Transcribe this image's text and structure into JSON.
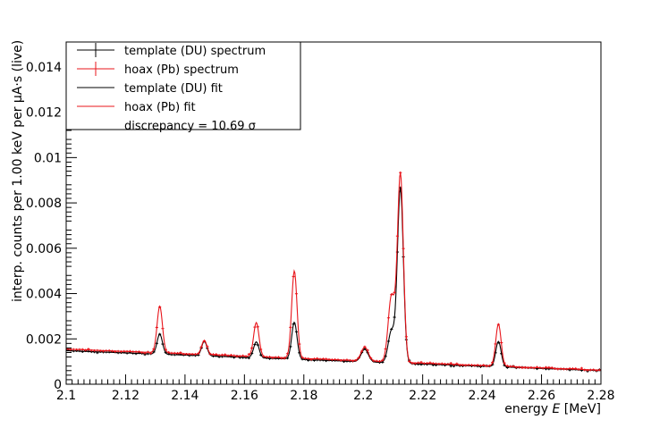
{
  "chart_data": {
    "type": "scatter",
    "xlabel_prefix": "energy",
    "xlabel_var": "E",
    "xlabel_unit": "[MeV]",
    "ylabel": "interp. counts per 1.00 keV per μA·s (live)",
    "xlim": [
      2.1,
      2.28
    ],
    "ylim": [
      0,
      0.0151
    ],
    "xticks": [
      "2.1",
      "2.12",
      "2.14",
      "2.16",
      "2.18",
      "2.2",
      "2.22",
      "2.24",
      "2.26",
      "2.28"
    ],
    "yticks": [
      "0",
      "0.002",
      "0.004",
      "0.006",
      "0.008",
      "0.01",
      "0.012",
      "0.014"
    ],
    "grid": false,
    "legend_position": "top-left",
    "legend": [
      {
        "label": "template (DU) spectrum",
        "kind": "marker",
        "color": "#000000"
      },
      {
        "label": "hoax (Pb) spectrum",
        "kind": "marker",
        "color": "#e8151b"
      },
      {
        "label": "template (DU) fit",
        "kind": "line",
        "color": "#000000"
      },
      {
        "label": "hoax (Pb) fit",
        "kind": "line",
        "color": "#e8151b"
      },
      {
        "label": "discrepancy = 10.69 σ",
        "kind": "none",
        "color": "#000000"
      }
    ],
    "series": [
      {
        "name": "template (DU)",
        "color": "#000000",
        "baseline": {
          "start": 0.00148,
          "end": 0.0006
        },
        "peaks": [
          {
            "x": 2.1315,
            "height": 0.00088,
            "sigma": 0.0009
          },
          {
            "x": 2.1465,
            "height": 0.00064,
            "sigma": 0.0009
          },
          {
            "x": 2.164,
            "height": 0.0007,
            "sigma": 0.0009
          },
          {
            "x": 2.1768,
            "height": 0.00163,
            "sigma": 0.0009
          },
          {
            "x": 2.2005,
            "height": 0.00055,
            "sigma": 0.0012
          },
          {
            "x": 2.2095,
            "height": 0.0014,
            "sigma": 0.0011
          },
          {
            "x": 2.2125,
            "height": 0.0077,
            "sigma": 0.001
          },
          {
            "x": 2.2455,
            "height": 0.00112,
            "sigma": 0.0009
          }
        ]
      },
      {
        "name": "hoax (Pb)",
        "color": "#e8151b",
        "baseline": {
          "start": 0.00155,
          "end": 0.00062
        },
        "peaks": [
          {
            "x": 2.1315,
            "height": 0.00205,
            "sigma": 0.0009
          },
          {
            "x": 2.1465,
            "height": 0.00062,
            "sigma": 0.0009
          },
          {
            "x": 2.164,
            "height": 0.0015,
            "sigma": 0.0009
          },
          {
            "x": 2.1768,
            "height": 0.00385,
            "sigma": 0.0009
          },
          {
            "x": 2.2005,
            "height": 0.0006,
            "sigma": 0.0012
          },
          {
            "x": 2.2095,
            "height": 0.0029,
            "sigma": 0.0011
          },
          {
            "x": 2.2125,
            "height": 0.0083,
            "sigma": 0.001
          },
          {
            "x": 2.2455,
            "height": 0.00185,
            "sigma": 0.0009
          }
        ]
      }
    ]
  }
}
